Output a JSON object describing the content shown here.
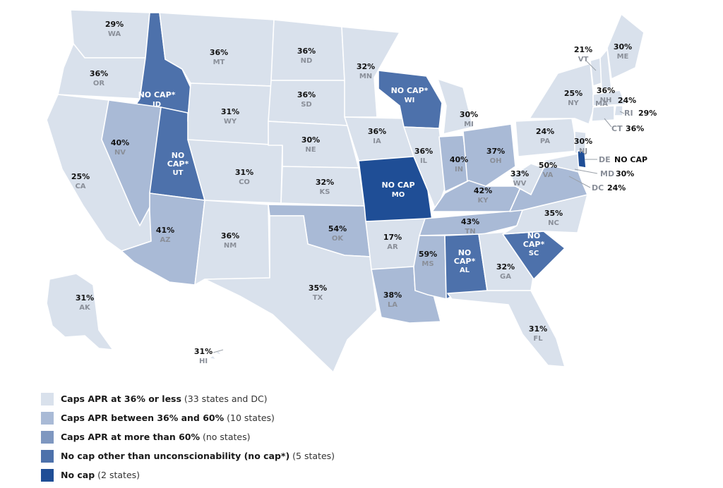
{
  "colors": {
    "cat1": "#d9e1ec",
    "cat2": "#a9bad6",
    "cat3": "#7e97c0",
    "cat4": "#4d71ab",
    "cat5": "#1f4e96"
  },
  "legend": [
    {
      "key": "cat1",
      "label": "Caps APR at 36% or less",
      "detail": " (33 states and DC)"
    },
    {
      "key": "cat2",
      "label": "Caps APR between 36% and 60%",
      "detail": " (10 states)"
    },
    {
      "key": "cat3",
      "label": "Caps APR at more than 60%",
      "detail": " (no states)"
    },
    {
      "key": "cat4",
      "label": "No cap other than unconscionability (no cap*)",
      "detail": " (5 states)"
    },
    {
      "key": "cat5",
      "label": "No cap",
      "detail": " (2 states)"
    }
  ],
  "states": [
    {
      "abbr": "WA",
      "value": "29%",
      "cat": "cat1"
    },
    {
      "abbr": "OR",
      "value": "36%",
      "cat": "cat1"
    },
    {
      "abbr": "CA",
      "value": "25%",
      "cat": "cat1"
    },
    {
      "abbr": "ID",
      "value": "NO CAP*",
      "cat": "cat4"
    },
    {
      "abbr": "NV",
      "value": "40%",
      "cat": "cat2"
    },
    {
      "abbr": "UT",
      "value": "NO CAP*",
      "cat": "cat4"
    },
    {
      "abbr": "AZ",
      "value": "41%",
      "cat": "cat2"
    },
    {
      "abbr": "MT",
      "value": "36%",
      "cat": "cat1"
    },
    {
      "abbr": "WY",
      "value": "31%",
      "cat": "cat1"
    },
    {
      "abbr": "CO",
      "value": "31%",
      "cat": "cat1"
    },
    {
      "abbr": "NM",
      "value": "36%",
      "cat": "cat1"
    },
    {
      "abbr": "ND",
      "value": "36%",
      "cat": "cat1"
    },
    {
      "abbr": "SD",
      "value": "36%",
      "cat": "cat1"
    },
    {
      "abbr": "NE",
      "value": "30%",
      "cat": "cat1"
    },
    {
      "abbr": "KS",
      "value": "32%",
      "cat": "cat1"
    },
    {
      "abbr": "OK",
      "value": "54%",
      "cat": "cat2"
    },
    {
      "abbr": "TX",
      "value": "35%",
      "cat": "cat1"
    },
    {
      "abbr": "MN",
      "value": "32%",
      "cat": "cat1"
    },
    {
      "abbr": "IA",
      "value": "36%",
      "cat": "cat1"
    },
    {
      "abbr": "MO",
      "value": "NO CAP",
      "cat": "cat5"
    },
    {
      "abbr": "AR",
      "value": "17%",
      "cat": "cat1"
    },
    {
      "abbr": "LA",
      "value": "38%",
      "cat": "cat2"
    },
    {
      "abbr": "WI",
      "value": "NO CAP*",
      "cat": "cat4"
    },
    {
      "abbr": "IL",
      "value": "36%",
      "cat": "cat1"
    },
    {
      "abbr": "MI",
      "value": "30%",
      "cat": "cat1"
    },
    {
      "abbr": "IN",
      "value": "40%",
      "cat": "cat2"
    },
    {
      "abbr": "OH",
      "value": "37%",
      "cat": "cat2"
    },
    {
      "abbr": "KY",
      "value": "42%",
      "cat": "cat2"
    },
    {
      "abbr": "TN",
      "value": "43%",
      "cat": "cat2"
    },
    {
      "abbr": "MS",
      "value": "59%",
      "cat": "cat2"
    },
    {
      "abbr": "AL",
      "value": "NO CAP*",
      "cat": "cat4"
    },
    {
      "abbr": "GA",
      "value": "32%",
      "cat": "cat1"
    },
    {
      "abbr": "FL",
      "value": "31%",
      "cat": "cat1"
    },
    {
      "abbr": "SC",
      "value": "NO CAP*",
      "cat": "cat4"
    },
    {
      "abbr": "NC",
      "value": "35%",
      "cat": "cat1"
    },
    {
      "abbr": "VA",
      "value": "50%",
      "cat": "cat2"
    },
    {
      "abbr": "WV",
      "value": "33%",
      "cat": "cat1"
    },
    {
      "abbr": "PA",
      "value": "24%",
      "cat": "cat1"
    },
    {
      "abbr": "NY",
      "value": "25%",
      "cat": "cat1"
    },
    {
      "abbr": "NJ",
      "value": "30%",
      "cat": "cat1"
    },
    {
      "abbr": "VT",
      "value": "21%",
      "cat": "cat1"
    },
    {
      "abbr": "NH",
      "value": "36%",
      "cat": "cat1"
    },
    {
      "abbr": "ME",
      "value": "30%",
      "cat": "cat1"
    },
    {
      "abbr": "MA",
      "value": "24%",
      "cat": "cat1"
    },
    {
      "abbr": "RI",
      "value": "29%",
      "cat": "cat1"
    },
    {
      "abbr": "CT",
      "value": "36%",
      "cat": "cat1"
    },
    {
      "abbr": "DE",
      "value": "NO CAP",
      "cat": "cat5"
    },
    {
      "abbr": "MD",
      "value": "30%",
      "cat": "cat1"
    },
    {
      "abbr": "DC",
      "value": "24%",
      "cat": "cat1"
    },
    {
      "abbr": "AK",
      "value": "31%",
      "cat": "cat1"
    },
    {
      "abbr": "HI",
      "value": "31%",
      "cat": "cat1"
    }
  ]
}
